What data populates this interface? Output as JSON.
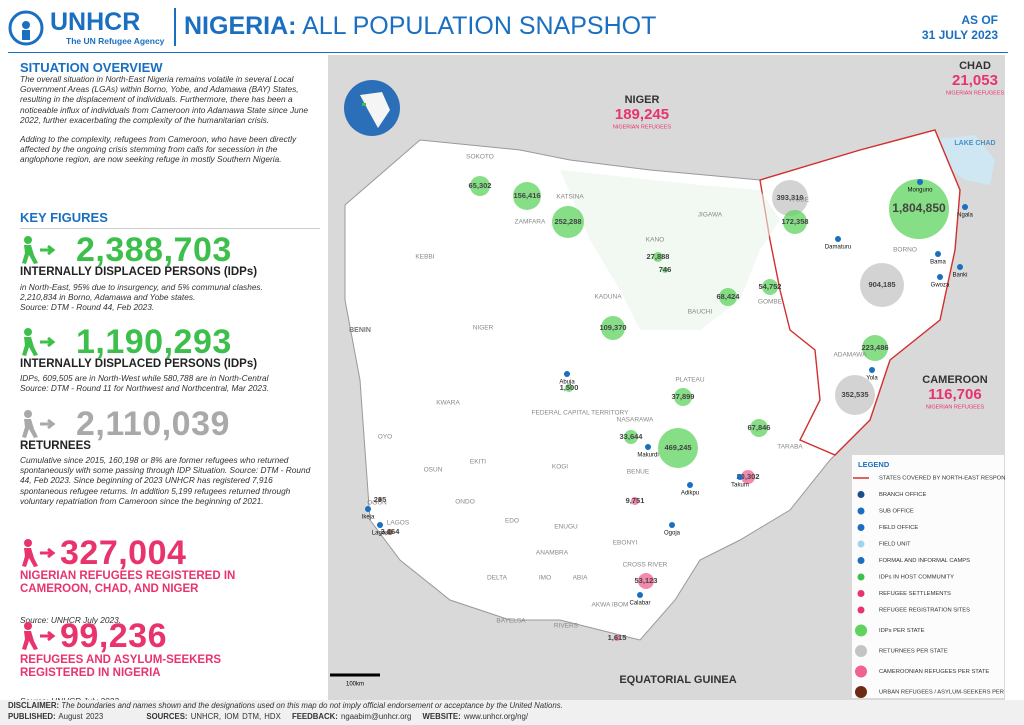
{
  "header": {
    "logo": "UNHCR",
    "logo_sub": "The UN Refugee Agency",
    "title_bold": "NIGERIA:",
    "title_rest": "ALL POPULATION SNAPSHOT",
    "date_label": "AS OF",
    "date": "31 JULY 2023"
  },
  "situation": {
    "heading": "SITUATION OVERVIEW",
    "paragraphs": [
      "The overall situation in North-East Nigeria remains volatile in several Local Government Areas (LGAs) within Borno, Yobe, and Adamawa (BAY) States, resulting in the displacement of individuals. Furthermore, there has been a noticeable influx of individuals from Cameroon into Adamawa State since June 2022, further exacerbating the complexity of the humanitarian crisis.",
      "Adding to the complexity, refugees from Cameroon, who have been directly affected by the ongoing crisis stemming from calls for secession in the anglophone region, are now seeking refuge in mostly Southern Nigeria."
    ]
  },
  "key_figures": {
    "heading": "KEY FIGURES",
    "items": [
      {
        "value": "2,388,703",
        "label": "INTERNALLY DISPLACED PERSONS (IDPs)",
        "color": "#3dbf4b",
        "notes": [
          "in North-East, 95% due to insurgency, and 5% communal clashes.",
          "2,210,834 in Borno, Adamawa and Yobe states.",
          "Source: DTM - Round 44, Feb 2023."
        ]
      },
      {
        "value": "1,190,293",
        "label": "INTERNALLY DISPLACED PERSONS (IDPs)",
        "color": "#3dbf4b",
        "notes": [
          "IDPs, 609,505 are in North-West while 580,788 are in North-Central",
          "Source: DTM - Round 11 for Northwest and Northcentral, Mar 2023."
        ]
      },
      {
        "value": "2,110,039",
        "label": "RETURNEES",
        "color": "#a9a9a9",
        "notes": [
          "Cumulative since 2015, 160,198 or 8% are former refugees who returned spontaneously with some passing through IDP Situation. Source: DTM - Round 44, Feb 2023. Since beginning of 2023 UNHCR has registered 7,916 spontaneous refugee returns. In addition 5,199 refugees returned through voluntary repatriation from Cameroon since the beginning of 2021."
        ]
      },
      {
        "value": "327,004",
        "label": "NIGERIAN REFUGEES REGISTERED IN CAMEROON, CHAD, AND NIGER",
        "color": "#e8336d",
        "notes": [
          "Source: UNHCR July 2023."
        ]
      },
      {
        "value": "99,236",
        "label": "REFUGEES AND ASYLUM-SEEKERS REGISTERED IN NIGERIA",
        "color": "#e8336d",
        "notes": [
          "Source: UNHCR July 2023."
        ]
      }
    ]
  },
  "map": {
    "countries": [
      {
        "name": "NIGER",
        "value": "189,245",
        "note": "NIGERIAN REFUGEES"
      },
      {
        "name": "CHAD",
        "value": "21,053",
        "note": "NIGERIAN REFUGEES"
      },
      {
        "name": "CAMEROON",
        "value": "116,706",
        "note": "NIGERIAN REFUGEES"
      },
      {
        "name": "BENIN"
      },
      {
        "name": "EQUATORIAL GUINEA"
      },
      {
        "name": "LAKE CHAD"
      }
    ],
    "states": [
      "SOKOTO",
      "ZAMFARA",
      "KATSINA",
      "KANO",
      "JIGAWA",
      "YOBE",
      "BORNO",
      "KEBBI",
      "NIGER",
      "KADUNA",
      "BAUCHI",
      "GOMBE",
      "ADAMAWA",
      "KWARA",
      "FEDERAL CAPITAL TERRITORY",
      "NASARAWA",
      "PLATEAU",
      "TARABA",
      "OYO",
      "OSUN",
      "EKITI",
      "KOGI",
      "BENUE",
      "ONDO",
      "OGUN",
      "LAGOS",
      "EDO",
      "ENUGU",
      "EBONYI",
      "ANAMBRA",
      "CROSS RIVER",
      "DELTA",
      "IMO",
      "ABIA",
      "AKWA IBOM",
      "BAYELSA",
      "RIVERS"
    ],
    "figures": [
      {
        "text": "65,302",
        "kind": "idp"
      },
      {
        "text": "156,416",
        "kind": "idp"
      },
      {
        "text": "252,288",
        "kind": "idp"
      },
      {
        "text": "27,888",
        "kind": "idp"
      },
      {
        "text": "746",
        "kind": "idp"
      },
      {
        "text": "68,424",
        "kind": "idp"
      },
      {
        "text": "54,752",
        "kind": "idp"
      },
      {
        "text": "109,370",
        "kind": "idp"
      },
      {
        "text": "1,500",
        "kind": "idp"
      },
      {
        "text": "37,899",
        "kind": "idp"
      },
      {
        "text": "33,644",
        "kind": "idp"
      },
      {
        "text": "67,846",
        "kind": "idp"
      },
      {
        "text": "469,245",
        "kind": "idp"
      },
      {
        "text": "393,319",
        "kind": "ret"
      },
      {
        "text": "172,358",
        "kind": "idp"
      },
      {
        "text": "1,804,850",
        "kind": "idp"
      },
      {
        "text": "904,185",
        "kind": "ret"
      },
      {
        "text": "223,486",
        "kind": "idp"
      },
      {
        "text": "352,535",
        "kind": "ret"
      },
      {
        "text": "20,302",
        "kind": "ref"
      },
      {
        "text": "9,751",
        "kind": "ref"
      },
      {
        "text": "53,123",
        "kind": "ref"
      },
      {
        "text": "1,615",
        "kind": "ref"
      },
      {
        "text": "235",
        "kind": "urb"
      },
      {
        "text": "3,164",
        "kind": "urb"
      }
    ],
    "towns": [
      "Abuja",
      "Yola",
      "Makurdi",
      "Takum",
      "Adikpu",
      "Ogoja",
      "Calabar",
      "Damaturu",
      "Bama",
      "Banki",
      "Gwoza",
      "Monguno",
      "Ngala",
      "Ikeja",
      "Lagos"
    ],
    "scale": "100km"
  },
  "legend": {
    "title": "LEGEND",
    "items": [
      "STATES COVERED BY NORTH-EAST RESPONSE",
      "BRANCH OFFICE",
      "SUB OFFICE",
      "FIELD OFFICE",
      "FIELD UNIT",
      "FORMAL AND INFORMAL CAMPS",
      "IDPs IN HOST COMMUNITY",
      "REFUGEE SETTLEMENTS",
      "REFUGEE REGISTRATION SITES",
      "IDPs PER STATE",
      "RETURNEES PER STATE",
      "CAMEROONIAN REFUGEES PER STATE",
      "URBAN REFUGEES / ASYLUM-SEEKERS PER STATE"
    ]
  },
  "footer": {
    "disclaimer_label": "DISCLAIMER:",
    "disclaimer": "The boundaries and names shown and the designations used on this map do not imply official endorsement or acceptance by the United Nations.",
    "published_label": "PUBLISHED:",
    "published": "August 2023",
    "sources_label": "SOURCES:",
    "sources": "UNHCR, IOM DTM, HDX",
    "feedback_label": "FEEDBACK:",
    "feedback": "ngaabim@unhcr.org",
    "website_label": "WEBSITE:",
    "website": "www.unhcr.org/ng/"
  }
}
